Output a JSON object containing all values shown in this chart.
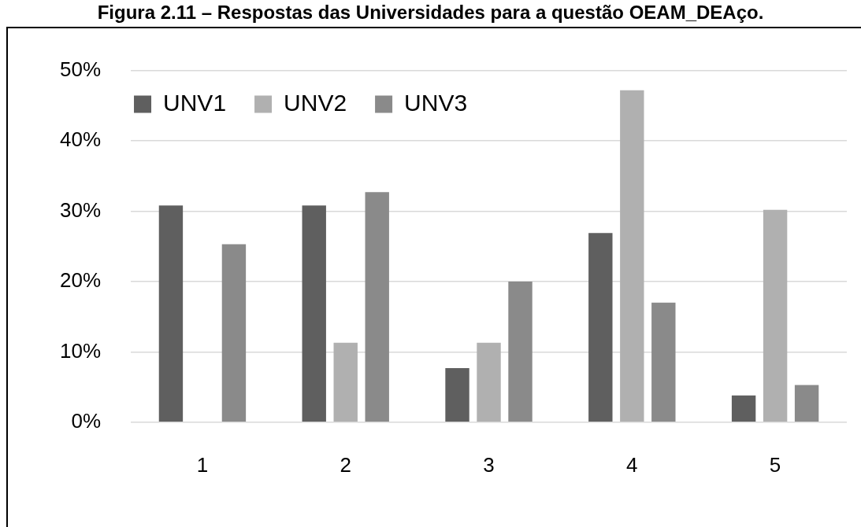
{
  "chart_data": {
    "type": "bar",
    "title": "Figura 2.11 – Respostas das Universidades para a questão OEAM_DEAço.",
    "categories": [
      "1",
      "2",
      "3",
      "4",
      "5"
    ],
    "series": [
      {
        "name": "UNV1",
        "color": "#5f5f5f",
        "values": [
          30.8,
          30.8,
          7.7,
          26.9,
          3.8
        ]
      },
      {
        "name": "UNV2",
        "color": "#b0b0b0",
        "values": [
          0,
          11.3,
          11.3,
          47.2,
          30.2
        ]
      },
      {
        "name": "UNV3",
        "color": "#8a8a8a",
        "values": [
          25.3,
          32.7,
          20,
          17,
          5.3
        ]
      }
    ],
    "ylim": [
      0,
      50
    ],
    "yticks": [
      {
        "value": 0,
        "label": "0%"
      },
      {
        "value": 10,
        "label": "10%"
      },
      {
        "value": 20,
        "label": "20%"
      },
      {
        "value": 30,
        "label": "30%"
      },
      {
        "value": 40,
        "label": "40%"
      },
      {
        "value": 50,
        "label": "50%"
      }
    ],
    "grid": "y",
    "legend": "top left"
  }
}
